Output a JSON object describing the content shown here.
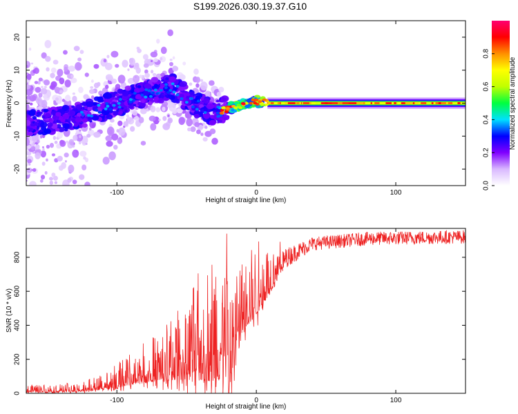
{
  "page": {
    "title": "S199.2026.030.19.37.G10"
  },
  "chart_data": [
    {
      "type": "heatmap",
      "xlabel": "Height of straight line (km)",
      "ylabel": "Frequency (Hz)",
      "xlim": [
        -165,
        150
      ],
      "ylim": [
        -25,
        25
      ],
      "xticks": [
        -100,
        0,
        100
      ],
      "yticks": [
        -20,
        -10,
        0,
        10,
        20
      ],
      "colorbar": {
        "label": "Normalized spectral amplitude",
        "range": [
          0,
          1
        ],
        "ticks": [
          0.0,
          0.2,
          0.4,
          0.6,
          0.8
        ],
        "colors": [
          "#ffffff",
          "#d9b8ff",
          "#8000ff",
          "#0000ff",
          "#00e0ff",
          "#00ff40",
          "#c0ff00",
          "#ffff00",
          "#ff9000",
          "#ff0000",
          "#ff0070"
        ]
      },
      "ridge": [
        {
          "x": -165,
          "y": -6
        },
        {
          "x": -140,
          "y": -5
        },
        {
          "x": -120,
          "y": -3
        },
        {
          "x": -100,
          "y": 0
        },
        {
          "x": -80,
          "y": 3
        },
        {
          "x": -60,
          "y": 5
        },
        {
          "x": -45,
          "y": 0
        },
        {
          "x": -30,
          "y": -3
        },
        {
          "x": -15,
          "y": -1
        },
        {
          "x": 0,
          "y": 0.5
        },
        {
          "x": 10,
          "y": 0
        },
        {
          "x": 150,
          "y": 0
        }
      ]
    },
    {
      "type": "line",
      "xlabel": "Height of straight line (km)",
      "ylabel": "SNR (10 * v/v)",
      "xlim": [
        -165,
        150
      ],
      "ylim": [
        0,
        970
      ],
      "xticks": [
        -100,
        0,
        100
      ],
      "yticks": [
        0,
        200,
        400,
        600,
        800
      ],
      "series": [
        {
          "color": "#ee2222",
          "envelope": [
            {
              "x": -165,
              "base": 15,
              "spread": 20
            },
            {
              "x": -130,
              "base": 20,
              "spread": 25
            },
            {
              "x": -110,
              "base": 40,
              "spread": 40
            },
            {
              "x": -90,
              "base": 90,
              "spread": 90
            },
            {
              "x": -70,
              "base": 140,
              "spread": 130
            },
            {
              "x": -50,
              "base": 190,
              "spread": 220
            },
            {
              "x": -30,
              "base": 260,
              "spread": 380
            },
            {
              "x": -16,
              "base": 300,
              "spread": 420
            },
            {
              "x": -14,
              "base": 420,
              "spread": 200
            },
            {
              "x": 0,
              "base": 560,
              "spread": 200
            },
            {
              "x": 10,
              "base": 660,
              "spread": 140
            },
            {
              "x": 20,
              "base": 790,
              "spread": 60
            },
            {
              "x": 40,
              "base": 880,
              "spread": 40
            },
            {
              "x": 80,
              "base": 910,
              "spread": 40
            },
            {
              "x": 150,
              "base": 920,
              "spread": 40
            }
          ]
        }
      ]
    }
  ]
}
